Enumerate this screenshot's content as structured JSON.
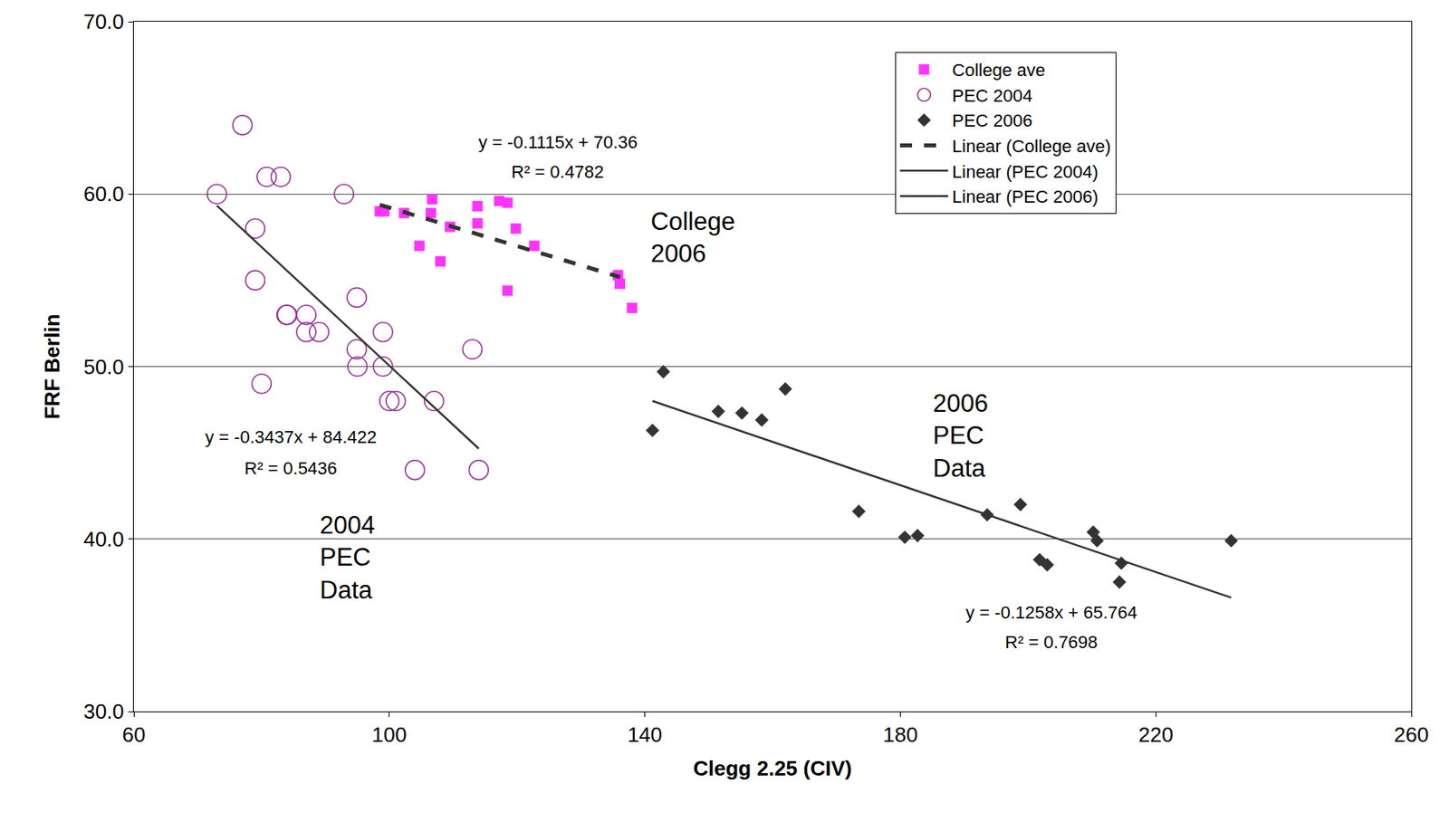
{
  "chart_data": {
    "type": "scatter",
    "x_label": "Clegg 2.25 (CIV)",
    "y_label": "FRF Berlin",
    "xlim": [
      60,
      260
    ],
    "ylim": [
      30,
      70
    ],
    "xticks": [
      60,
      100,
      140,
      180,
      220,
      260
    ],
    "yticks": [
      {
        "value": 30,
        "label": "30.0"
      },
      {
        "value": 40,
        "label": "40.0"
      },
      {
        "value": 50,
        "label": "50.0"
      },
      {
        "value": 60,
        "label": "60.0"
      },
      {
        "value": 70,
        "label": "70.0"
      }
    ],
    "grid": true,
    "legend": "top right",
    "series": [
      {
        "name": "College ave",
        "type": "scatter",
        "marker": "square",
        "color": "#ff33ff",
        "x": [
          98.5,
          99.2,
          102.3,
          104.7,
          106.5,
          106.7,
          108,
          109.5,
          113.8,
          113.8,
          117.2,
          118.5,
          118.5,
          119.8,
          122.7,
          135.8,
          136.1,
          138
        ],
        "values": [
          59,
          59,
          58.9,
          57,
          58.9,
          59.7,
          56.1,
          58.1,
          59.3,
          58.3,
          59.6,
          59.5,
          54.4,
          58,
          57,
          55.3,
          54.8,
          53.4
        ]
      },
      {
        "name": "PEC 2004",
        "type": "scatter",
        "marker": "circle-open",
        "color": "#993399",
        "x": [
          73,
          77,
          80.8,
          83,
          92.9,
          79,
          79,
          80,
          83.9,
          84,
          87,
          87,
          89,
          94.9,
          94.9,
          95,
          99,
          99,
          100,
          101,
          107,
          113,
          104,
          114
        ],
        "values": [
          60,
          64,
          61,
          61,
          60,
          58,
          55,
          49,
          53,
          53,
          53,
          52,
          52,
          54,
          51,
          50,
          52,
          50,
          48,
          48,
          48,
          51,
          44,
          44
        ]
      },
      {
        "name": "PEC 2006",
        "type": "scatter",
        "marker": "diamond",
        "color": "#333333",
        "x": [
          141.2,
          142.9,
          151.5,
          155.2,
          158.3,
          162,
          173.5,
          180.7,
          182.7,
          193.6,
          198.8,
          201.8,
          203,
          210.2,
          210.8,
          214.6,
          214.3,
          231.8
        ],
        "values": [
          46.3,
          49.7,
          47.4,
          47.3,
          46.9,
          48.7,
          41.6,
          40.1,
          40.2,
          41.4,
          42,
          38.8,
          38.5,
          40.4,
          39.9,
          38.6,
          37.5,
          39.9
        ]
      },
      {
        "name": "Linear (College ave)",
        "type": "line",
        "line_style": "dashed",
        "color": "#333333",
        "x": [
          98.5,
          136.1
        ],
        "values": [
          59.38,
          55.19
        ]
      },
      {
        "name": "Linear (PEC 2004)",
        "type": "line",
        "line_style": "solid",
        "color": "#333333",
        "x": [
          73,
          114
        ],
        "values": [
          59.33,
          45.24
        ]
      },
      {
        "name": "Linear (PEC 2006)",
        "type": "line",
        "line_style": "solid",
        "color": "#333333",
        "x": [
          141.2,
          231.8
        ],
        "values": [
          48.0,
          36.6
        ]
      }
    ],
    "annotations": [
      "y = -0.1115x + 70.36",
      "R² = 0.4782",
      "College\n2006",
      "y = -0.3437x + 84.422",
      "R² = 0.5436",
      "2004\nPEC\nData",
      "2006\nPEC\nData",
      "y = -0.1258x + 65.764",
      "R² = 0.7698"
    ]
  }
}
